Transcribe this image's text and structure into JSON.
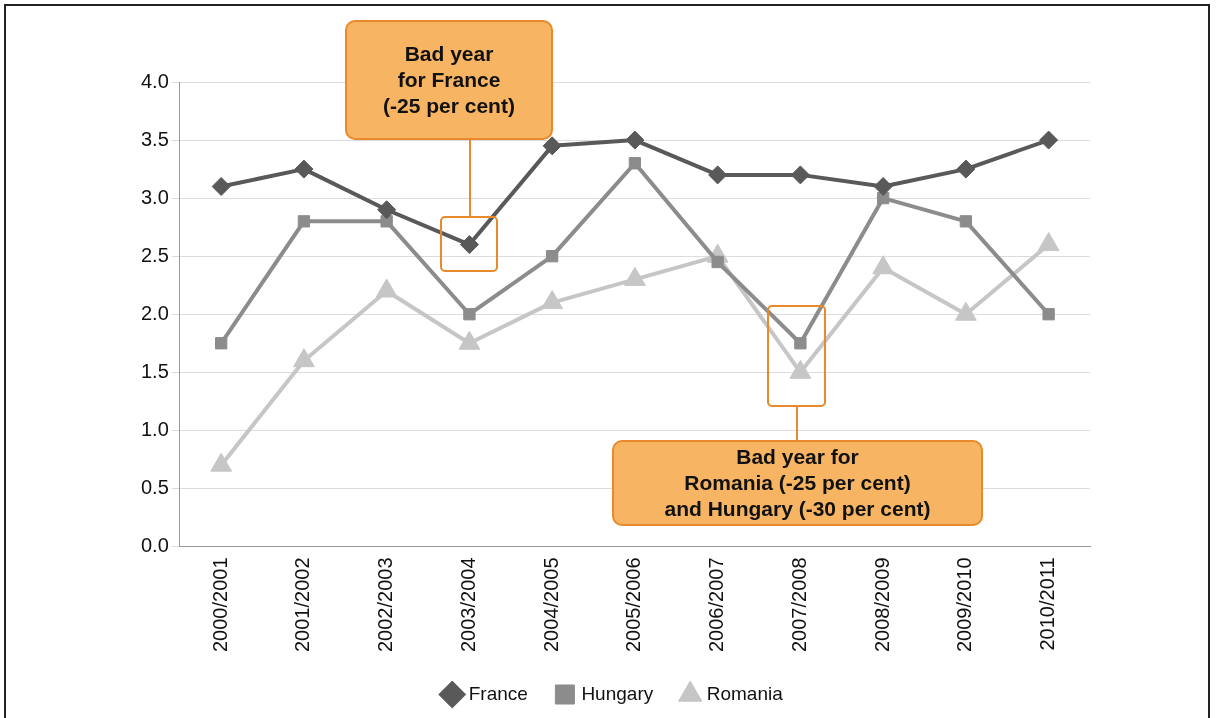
{
  "chart_data": {
    "type": "line",
    "categories": [
      "2000/2001",
      "2001/2002",
      "2002/2003",
      "2003/2004",
      "2004/2005",
      "2005/2006",
      "2006/2007",
      "2007/2008",
      "2008/2009",
      "2009/2010",
      "2010/2011"
    ],
    "series": [
      {
        "name": "France",
        "color": "#595959",
        "marker": "diamond",
        "values": [
          3.1,
          3.25,
          2.9,
          2.6,
          3.45,
          3.5,
          3.2,
          3.2,
          3.1,
          3.25,
          3.5
        ]
      },
      {
        "name": "Hungary",
        "color": "#8c8c8c",
        "marker": "square",
        "values": [
          1.75,
          2.8,
          2.8,
          2.0,
          2.5,
          3.3,
          2.45,
          1.75,
          3.0,
          2.8,
          2.0
        ]
      },
      {
        "name": "Romania",
        "color": "#c6c6c6",
        "marker": "triangle",
        "values": [
          0.7,
          1.6,
          2.2,
          1.75,
          2.1,
          2.3,
          2.5,
          1.5,
          2.4,
          2.0,
          2.6
        ]
      }
    ],
    "ylim": [
      0,
      4
    ],
    "yticks": [
      {
        "value": 0,
        "label": "0.0"
      },
      {
        "value": 0.5,
        "label": "0.5"
      },
      {
        "value": 1,
        "label": "1.0"
      },
      {
        "value": 1.5,
        "label": "1.5"
      },
      {
        "value": 2,
        "label": "2.0"
      },
      {
        "value": 2.5,
        "label": "2.5"
      },
      {
        "value": 3,
        "label": "3.0"
      },
      {
        "value": 3.5,
        "label": "3.5"
      },
      {
        "value": 4,
        "label": "4.0"
      }
    ],
    "grid": "y",
    "legend": "bottom",
    "line_style": "solid",
    "annotations": [
      "Bad year\nfor France\n(-25 per cent)",
      "Bad year for\nRomania (-25 per cent)\nand Hungary (-30 per cent)"
    ]
  }
}
